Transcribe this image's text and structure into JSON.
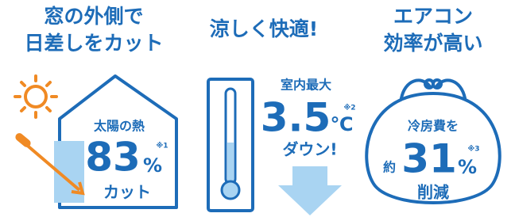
{
  "panels": [
    {
      "title": [
        "窓の外側で",
        "日差しをカット"
      ],
      "caption": "太陽の熱",
      "number": "83",
      "unit": "%",
      "note": "※1",
      "result": "カット"
    },
    {
      "title": [
        "涼しく快適!"
      ],
      "caption": "室内最大",
      "number": "3.5",
      "unit": "℃",
      "note": "※2",
      "result": "ダウン!"
    },
    {
      "title": [
        "エアコン",
        "効率が高い"
      ],
      "caption": "冷房費を",
      "prefix": "約",
      "number": "31",
      "unit": "%",
      "note": "※3",
      "result": "削減"
    }
  ]
}
